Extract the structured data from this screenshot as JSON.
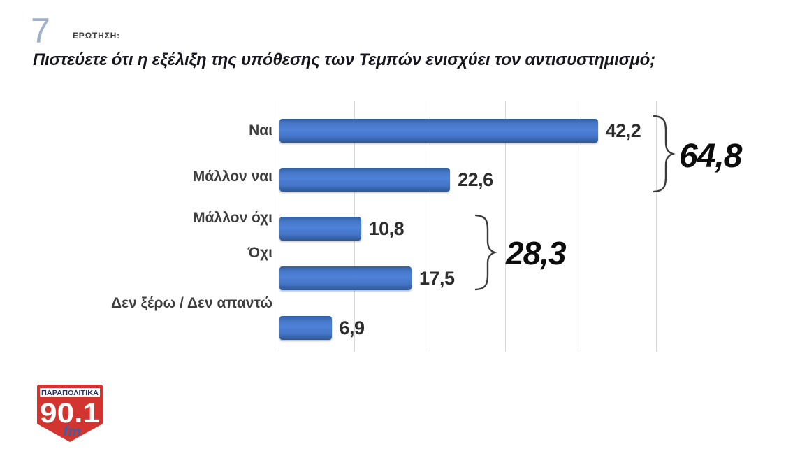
{
  "header": {
    "number": "7",
    "kicker": "ΕΡΩΤΗΣΗ:",
    "title": "Πιστεύετε ότι η εξέλιξη της υπόθεσης των Τεμπών ενισχύει τον αντισυστημισμό;"
  },
  "chart_data": {
    "type": "bar",
    "orientation": "horizontal",
    "title": "Πιστεύετε ότι η εξέλιξη της υπόθεσης των Τεμπών ενισχύει τον αντισυστημισμό;",
    "categories": [
      "Ναι",
      "Μάλλον ναι",
      "Μάλλον όχι",
      "Όχι",
      "Δεν ξέρω / Δεν απαντώ"
    ],
    "values": [
      42.2,
      22.6,
      10.8,
      17.5,
      6.9
    ],
    "value_labels": [
      "42,2",
      "22,6",
      "10,8",
      "17,5",
      "6,9"
    ],
    "xlim": [
      0,
      50
    ],
    "gridline_step": 10,
    "grid": true,
    "legend": false,
    "bar_color": "#4677c9",
    "gridline_color": "#d8d8d8",
    "groups": [
      {
        "label": "64,8",
        "value": 64.8,
        "sum_of": [
          "Ναι",
          "Μάλλον ναι"
        ]
      },
      {
        "label": "28,3",
        "value": 28.3,
        "sum_of": [
          "Μάλλον όχι",
          "Όχι"
        ]
      }
    ]
  },
  "logo": {
    "station": "ΠΑΡΑΠΟΛΙΤΙΚΑ",
    "frequency": "90.1",
    "band": "fm",
    "shield_red": "#d23430",
    "navy": "#272f62",
    "fm_blue": "#3c5fa5"
  }
}
